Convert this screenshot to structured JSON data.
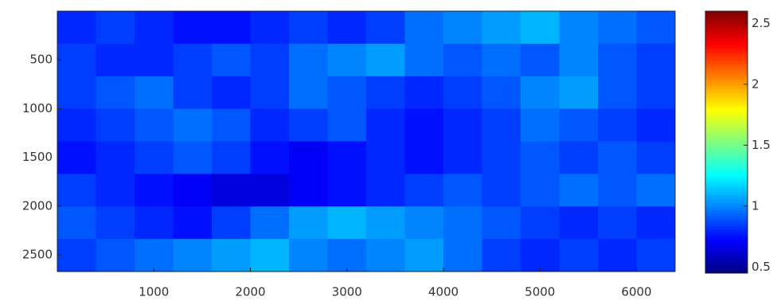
{
  "chart_data": {
    "type": "heatmap",
    "xlim": [
      0,
      6400
    ],
    "ylim": [
      0,
      2670
    ],
    "xticks": [
      1000,
      2000,
      3000,
      4000,
      5000,
      6000
    ],
    "yticks": [
      500,
      1000,
      1500,
      2000,
      2500
    ],
    "clim": [
      0.45,
      2.6
    ],
    "cticks": [
      0.5,
      1,
      1.5,
      2,
      2.5
    ],
    "colormap": "jet",
    "values": [
      [
        0.8,
        0.85,
        0.8,
        0.75,
        0.75,
        0.8,
        0.85,
        0.8,
        0.85,
        0.95,
        1.0,
        1.05,
        1.1,
        1.0,
        0.95,
        0.9
      ],
      [
        0.85,
        0.8,
        0.8,
        0.85,
        0.9,
        0.85,
        0.95,
        1.0,
        1.05,
        0.95,
        0.9,
        0.95,
        0.9,
        1.0,
        0.9,
        0.85
      ],
      [
        0.85,
        0.9,
        0.95,
        0.85,
        0.8,
        0.85,
        0.95,
        0.9,
        0.85,
        0.8,
        0.85,
        0.9,
        1.0,
        1.05,
        0.9,
        0.85
      ],
      [
        0.8,
        0.85,
        0.9,
        0.95,
        0.9,
        0.8,
        0.85,
        0.9,
        0.8,
        0.75,
        0.8,
        0.85,
        0.95,
        0.9,
        0.85,
        0.8
      ],
      [
        0.75,
        0.8,
        0.85,
        0.9,
        0.85,
        0.75,
        0.7,
        0.75,
        0.8,
        0.75,
        0.8,
        0.85,
        0.9,
        0.85,
        0.9,
        0.85
      ],
      [
        0.85,
        0.8,
        0.75,
        0.7,
        0.65,
        0.65,
        0.7,
        0.75,
        0.8,
        0.85,
        0.9,
        0.85,
        0.9,
        0.95,
        0.9,
        0.95
      ],
      [
        0.9,
        0.85,
        0.8,
        0.75,
        0.85,
        0.95,
        1.05,
        1.1,
        1.05,
        1.0,
        0.95,
        0.9,
        0.85,
        0.8,
        0.85,
        0.8
      ],
      [
        0.85,
        0.9,
        0.95,
        1.0,
        1.05,
        1.1,
        1.0,
        0.95,
        1.0,
        1.05,
        0.95,
        0.85,
        0.8,
        0.85,
        0.8,
        0.85
      ]
    ]
  }
}
